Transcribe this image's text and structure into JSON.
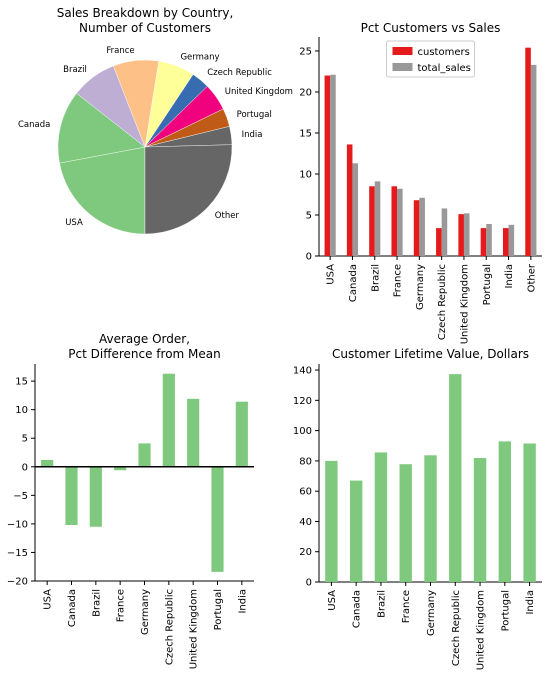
{
  "chart_data": [
    {
      "type": "pie",
      "title": "Sales Breakdown by Country,\nNumber of Customers",
      "labels": [
        "USA",
        "Canada",
        "Brazil",
        "France",
        "Germany",
        "Czech Republic",
        "United Kingdom",
        "Portugal",
        "India",
        "Other"
      ],
      "values": [
        13,
        8,
        5,
        5,
        4,
        2,
        3,
        2,
        2,
        15
      ],
      "colors": [
        "#7fc97f",
        "#7fc97f",
        "#beaed4",
        "#fdc086",
        "#ffff99",
        "#386cb0",
        "#f0027f",
        "#bf5b17",
        "#666666",
        "#666666"
      ]
    },
    {
      "type": "bar",
      "title": "Pct Customers vs Sales",
      "categories": [
        "USA",
        "Canada",
        "Brazil",
        "France",
        "Germany",
        "Czech Republic",
        "United Kingdom",
        "Portugal",
        "India",
        "Other"
      ],
      "series": [
        {
          "name": "customers",
          "color": "#e41a1c",
          "values": [
            22.0,
            13.6,
            8.5,
            8.5,
            6.8,
            3.4,
            5.1,
            3.4,
            3.4,
            25.4
          ]
        },
        {
          "name": "total_sales",
          "color": "#999999",
          "values": [
            22.1,
            11.3,
            9.1,
            8.2,
            7.1,
            5.8,
            5.2,
            3.9,
            3.8,
            23.3
          ]
        }
      ],
      "ylim": [
        0,
        26.7
      ],
      "yticks": [
        0,
        5,
        10,
        15,
        20,
        25
      ],
      "legend": "top-center"
    },
    {
      "type": "bar",
      "title": "Average Order,\nPct Difference from Mean",
      "categories": [
        "USA",
        "Canada",
        "Brazil",
        "France",
        "Germany",
        "Czech Republic",
        "United Kingdom",
        "Portugal",
        "India"
      ],
      "values": [
        1.2,
        -10.2,
        -10.5,
        -0.6,
        4.1,
        16.3,
        11.9,
        -18.4,
        11.4
      ],
      "color": "#7fc97f",
      "ylim": [
        -20,
        18
      ],
      "yticks": [
        -20,
        -15,
        -10,
        -5,
        0,
        5,
        10,
        15
      ]
    },
    {
      "type": "bar",
      "title": "Customer Lifetime Value, Dollars",
      "categories": [
        "USA",
        "Canada",
        "Brazil",
        "France",
        "Germany",
        "Czech Republic",
        "United Kingdom",
        "Portugal",
        "India"
      ],
      "values": [
        80.0,
        67.0,
        85.6,
        77.8,
        83.7,
        137.3,
        81.9,
        92.9,
        91.5
      ],
      "color": "#7fc97f",
      "ylim": [
        0,
        144
      ],
      "yticks": [
        0,
        20,
        40,
        60,
        80,
        100,
        120,
        140
      ]
    }
  ]
}
